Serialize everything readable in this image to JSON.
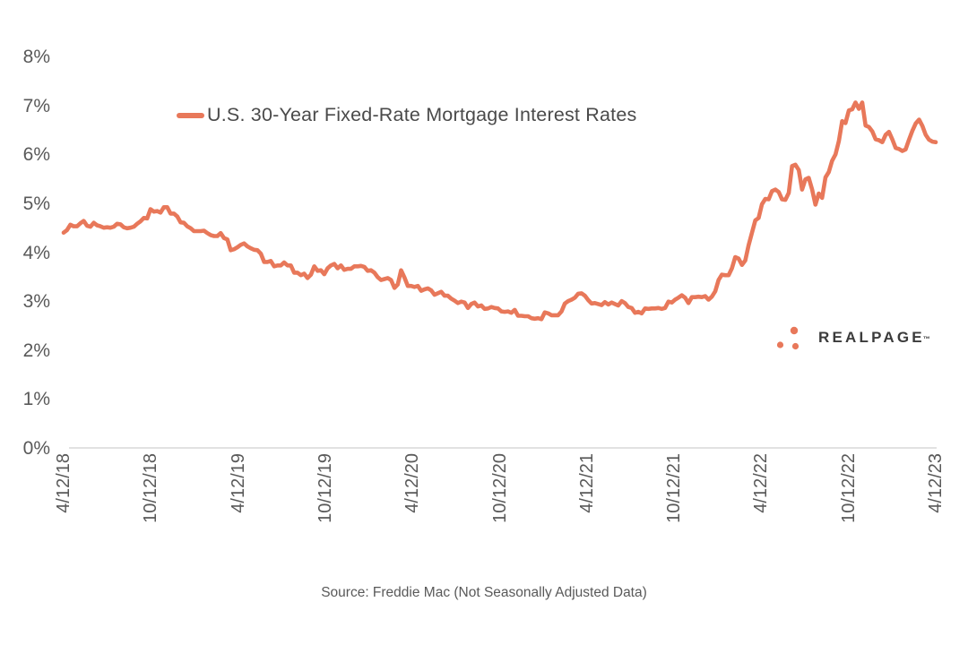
{
  "legend": {
    "label": "U.S. 30-Year Fixed-Rate Mortgage Interest Rates"
  },
  "source": {
    "text": "Source: Freddie Mac (Not Seasonally Adjusted Data)"
  },
  "logo": {
    "text": "REALPAGE",
    "tm": "™",
    "dot_color": "#E8785A",
    "text_color": "#3B3B3B"
  },
  "colors": {
    "line": "#E8785A",
    "axis_text": "#595959",
    "axis_line": "#D9D9D9"
  },
  "chart_data": {
    "type": "line",
    "title": "U.S. 30-Year Fixed-Rate Mortgage Interest Rates",
    "xlabel": "",
    "ylabel": "",
    "ylim": [
      0,
      8
    ],
    "grid": false,
    "legend_position": "top-center",
    "frequency": "weekly",
    "x_range": [
      "4/12/18",
      "4/12/23"
    ],
    "x_tick_labels": [
      "4/12/18",
      "10/12/18",
      "4/12/19",
      "10/12/19",
      "4/12/20",
      "10/12/20",
      "4/12/21",
      "10/12/21",
      "4/12/22",
      "10/12/22",
      "4/12/23"
    ],
    "y_tick_labels": [
      "0%",
      "1%",
      "2%",
      "3%",
      "4%",
      "5%",
      "6%",
      "7%",
      "8%"
    ],
    "values": [
      4.42,
      4.47,
      4.58,
      4.55,
      4.55,
      4.61,
      4.66,
      4.56,
      4.54,
      4.62,
      4.57,
      4.55,
      4.52,
      4.53,
      4.52,
      4.54,
      4.6,
      4.59,
      4.53,
      4.51,
      4.52,
      4.54,
      4.6,
      4.65,
      4.72,
      4.71,
      4.9,
      4.85,
      4.86,
      4.83,
      4.94,
      4.94,
      4.81,
      4.81,
      4.75,
      4.63,
      4.62,
      4.55,
      4.51,
      4.45,
      4.45,
      4.45,
      4.46,
      4.41,
      4.37,
      4.35,
      4.35,
      4.41,
      4.31,
      4.28,
      4.06,
      4.08,
      4.12,
      4.17,
      4.2,
      4.14,
      4.1,
      4.07,
      4.06,
      3.99,
      3.82,
      3.82,
      3.84,
      3.73,
      3.75,
      3.75,
      3.81,
      3.75,
      3.75,
      3.6,
      3.6,
      3.55,
      3.58,
      3.49,
      3.56,
      3.73,
      3.64,
      3.65,
      3.57,
      3.69,
      3.75,
      3.78,
      3.69,
      3.75,
      3.66,
      3.68,
      3.68,
      3.73,
      3.73,
      3.74,
      3.72,
      3.64,
      3.65,
      3.6,
      3.51,
      3.45,
      3.47,
      3.49,
      3.45,
      3.29,
      3.36,
      3.65,
      3.5,
      3.33,
      3.33,
      3.31,
      3.33,
      3.23,
      3.26,
      3.28,
      3.24,
      3.15,
      3.18,
      3.21,
      3.13,
      3.13,
      3.07,
      3.03,
      2.98,
      3.01,
      2.99,
      2.88,
      2.96,
      2.99,
      2.91,
      2.93,
      2.86,
      2.87,
      2.9,
      2.88,
      2.87,
      2.81,
      2.8,
      2.81,
      2.78,
      2.84,
      2.72,
      2.72,
      2.71,
      2.71,
      2.67,
      2.66,
      2.67,
      2.65,
      2.79,
      2.77,
      2.73,
      2.73,
      2.73,
      2.81,
      2.97,
      3.02,
      3.05,
      3.09,
      3.17,
      3.18,
      3.13,
      3.04,
      2.97,
      2.98,
      2.96,
      2.94,
      3.0,
      2.95,
      2.99,
      2.96,
      2.93,
      3.02,
      2.98,
      2.9,
      2.88,
      2.78,
      2.8,
      2.77,
      2.87,
      2.86,
      2.87,
      2.87,
      2.88,
      2.86,
      2.88,
      3.01,
      2.99,
      3.05,
      3.09,
      3.14,
      3.09,
      2.98,
      3.1,
      3.1,
      3.11,
      3.1,
      3.12,
      3.05,
      3.11,
      3.22,
      3.45,
      3.56,
      3.55,
      3.55,
      3.69,
      3.92,
      3.89,
      3.76,
      3.85,
      4.16,
      4.42,
      4.67,
      4.72,
      5.0,
      5.11,
      5.1,
      5.27,
      5.3,
      5.25,
      5.1,
      5.09,
      5.23,
      5.78,
      5.81,
      5.7,
      5.3,
      5.51,
      5.54,
      5.3,
      4.99,
      5.22,
      5.13,
      5.55,
      5.66,
      5.89,
      6.02,
      6.29,
      6.7,
      6.66,
      6.92,
      6.94,
      7.08,
      6.95,
      7.08,
      6.61,
      6.58,
      6.49,
      6.33,
      6.31,
      6.27,
      6.42,
      6.48,
      6.33,
      6.15,
      6.13,
      6.09,
      6.12,
      6.32,
      6.5,
      6.65,
      6.73,
      6.6,
      6.42,
      6.32,
      6.28,
      6.27
    ]
  }
}
